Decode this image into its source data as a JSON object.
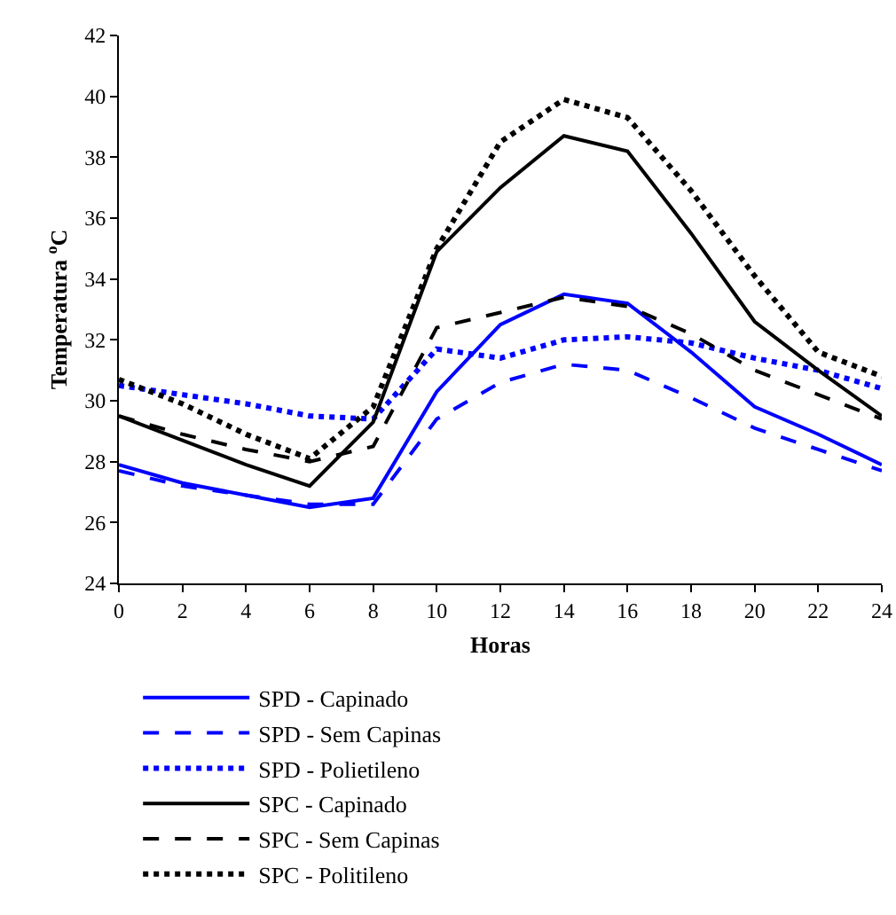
{
  "chart_data": {
    "type": "line",
    "xlabel": "Horas",
    "ylabel": "Temperatura $^{o}$C",
    "x": [
      0,
      2,
      4,
      6,
      8,
      10,
      12,
      14,
      16,
      18,
      20,
      22,
      24
    ],
    "xlim": [
      0,
      24
    ],
    "xticks": [
      0,
      2,
      4,
      6,
      8,
      10,
      12,
      14,
      16,
      18,
      20,
      22,
      24
    ],
    "ylim": [
      24,
      42
    ],
    "yticks": [
      24,
      26,
      28,
      30,
      32,
      34,
      36,
      38,
      40,
      42
    ],
    "grid": false,
    "legend": "bottom",
    "marker": "none",
    "series": [
      {
        "name": "SPD - Capinado",
        "color": "#0000ff",
        "line_style": "solid",
        "values": [
          27.9,
          27.3,
          26.9,
          26.5,
          26.8,
          30.3,
          32.5,
          33.5,
          33.2,
          31.6,
          29.8,
          28.9,
          27.9
        ]
      },
      {
        "name": "SPD - Sem Capinas",
        "color": "#0000ff",
        "line_style": "dashed",
        "values": [
          27.7,
          27.2,
          26.9,
          26.6,
          26.6,
          29.4,
          30.6,
          31.2,
          31.0,
          30.1,
          29.1,
          28.4,
          27.7
        ]
      },
      {
        "name": "SPD - Polietileno",
        "color": "#0000ff",
        "line_style": "dotted",
        "values": [
          30.5,
          30.2,
          29.9,
          29.5,
          29.4,
          31.7,
          31.4,
          32.0,
          32.1,
          31.9,
          31.4,
          31.0,
          30.4
        ]
      },
      {
        "name": "SPC - Capinado",
        "color": "#000000",
        "line_style": "solid",
        "values": [
          29.5,
          28.7,
          27.9,
          27.2,
          29.3,
          34.9,
          37.0,
          38.7,
          38.2,
          35.5,
          32.6,
          31.0,
          29.5
        ]
      },
      {
        "name": "SPC - Sem Capinas",
        "color": "#000000",
        "line_style": "dashed",
        "values": [
          29.5,
          28.9,
          28.4,
          28.0,
          28.5,
          32.4,
          32.9,
          33.4,
          33.1,
          32.2,
          31.0,
          30.2,
          29.4
        ]
      },
      {
        "name": "SPC - Politileno",
        "color": "#000000",
        "line_style": "dotted",
        "values": [
          30.7,
          29.9,
          28.9,
          28.1,
          29.8,
          35.0,
          38.5,
          39.9,
          39.3,
          36.9,
          34.1,
          31.6,
          30.8
        ]
      }
    ]
  }
}
